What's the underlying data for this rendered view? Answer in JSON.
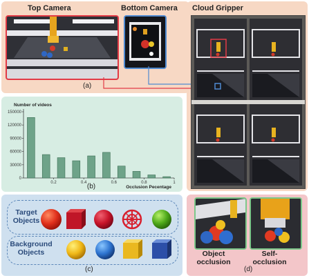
{
  "panel_a": {
    "top_camera_title": "Top Camera",
    "bottom_camera_title": "Bottom Camera",
    "label": "(a)"
  },
  "panel_cloud": {
    "title": "Cloud Gripper"
  },
  "panel_b": {
    "label": "(b)"
  },
  "panel_c": {
    "label": "(c)",
    "target_label": "Target Objects",
    "background_label": "Background Objects"
  },
  "panel_d": {
    "label": "(d)",
    "object_occlusion_label": "Object occlusion",
    "self_occlusion_label": "Self-occlusion"
  },
  "chart_data": {
    "type": "bar",
    "ylabel": "Number of videos",
    "xlabel": "Occlusion Pecentage",
    "yticks": [
      0,
      30000,
      60000,
      90000,
      120000,
      150000
    ],
    "xticks": [
      0.2,
      0.4,
      0.6,
      0.8,
      1
    ],
    "ylim": [
      0,
      150000
    ],
    "xlim": [
      0,
      1
    ],
    "x": [
      0.05,
      0.15,
      0.25,
      0.35,
      0.45,
      0.55,
      0.65,
      0.75,
      0.85,
      0.95
    ],
    "values": [
      137000,
      53000,
      46000,
      39000,
      50000,
      58000,
      27000,
      15000,
      7000,
      3000
    ],
    "bar_color": "#6ea389"
  },
  "colors": {
    "peach": "#f7d8c4",
    "mint": "#d7ede3",
    "sky": "#cfe0ef",
    "pink": "#f3c6c9",
    "red_frame": "#e23a46",
    "blue_frame": "#4f8ad1"
  }
}
